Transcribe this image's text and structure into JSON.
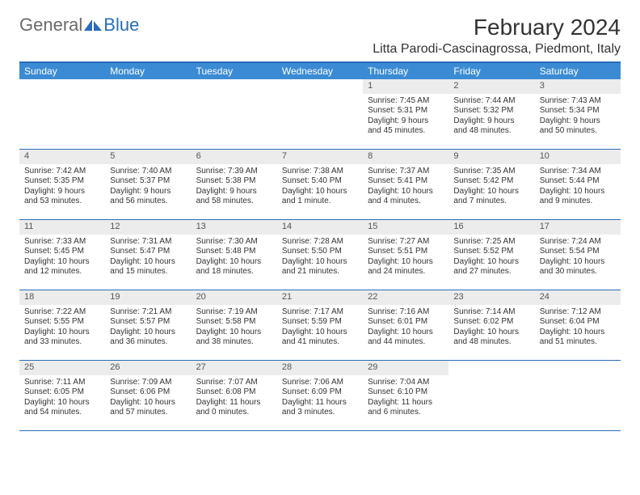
{
  "logo": {
    "text1": "General",
    "text2": "Blue"
  },
  "title": "February 2024",
  "location": "Litta Parodi-Cascinagrossa, Piedmont, Italy",
  "colors": {
    "header_bg": "#3b8bd4",
    "border": "#2a6db8",
    "daynum_bg": "#ececec",
    "logo_gray": "#6a6a6a",
    "logo_blue": "#2a6db8"
  },
  "weekdays": [
    "Sunday",
    "Monday",
    "Tuesday",
    "Wednesday",
    "Thursday",
    "Friday",
    "Saturday"
  ],
  "weeks": [
    [
      {
        "n": "",
        "sr": "",
        "ss": "",
        "dl": ""
      },
      {
        "n": "",
        "sr": "",
        "ss": "",
        "dl": ""
      },
      {
        "n": "",
        "sr": "",
        "ss": "",
        "dl": ""
      },
      {
        "n": "",
        "sr": "",
        "ss": "",
        "dl": ""
      },
      {
        "n": "1",
        "sr": "Sunrise: 7:45 AM",
        "ss": "Sunset: 5:31 PM",
        "dl": "Daylight: 9 hours and 45 minutes."
      },
      {
        "n": "2",
        "sr": "Sunrise: 7:44 AM",
        "ss": "Sunset: 5:32 PM",
        "dl": "Daylight: 9 hours and 48 minutes."
      },
      {
        "n": "3",
        "sr": "Sunrise: 7:43 AM",
        "ss": "Sunset: 5:34 PM",
        "dl": "Daylight: 9 hours and 50 minutes."
      }
    ],
    [
      {
        "n": "4",
        "sr": "Sunrise: 7:42 AM",
        "ss": "Sunset: 5:35 PM",
        "dl": "Daylight: 9 hours and 53 minutes."
      },
      {
        "n": "5",
        "sr": "Sunrise: 7:40 AM",
        "ss": "Sunset: 5:37 PM",
        "dl": "Daylight: 9 hours and 56 minutes."
      },
      {
        "n": "6",
        "sr": "Sunrise: 7:39 AM",
        "ss": "Sunset: 5:38 PM",
        "dl": "Daylight: 9 hours and 58 minutes."
      },
      {
        "n": "7",
        "sr": "Sunrise: 7:38 AM",
        "ss": "Sunset: 5:40 PM",
        "dl": "Daylight: 10 hours and 1 minute."
      },
      {
        "n": "8",
        "sr": "Sunrise: 7:37 AM",
        "ss": "Sunset: 5:41 PM",
        "dl": "Daylight: 10 hours and 4 minutes."
      },
      {
        "n": "9",
        "sr": "Sunrise: 7:35 AM",
        "ss": "Sunset: 5:42 PM",
        "dl": "Daylight: 10 hours and 7 minutes."
      },
      {
        "n": "10",
        "sr": "Sunrise: 7:34 AM",
        "ss": "Sunset: 5:44 PM",
        "dl": "Daylight: 10 hours and 9 minutes."
      }
    ],
    [
      {
        "n": "11",
        "sr": "Sunrise: 7:33 AM",
        "ss": "Sunset: 5:45 PM",
        "dl": "Daylight: 10 hours and 12 minutes."
      },
      {
        "n": "12",
        "sr": "Sunrise: 7:31 AM",
        "ss": "Sunset: 5:47 PM",
        "dl": "Daylight: 10 hours and 15 minutes."
      },
      {
        "n": "13",
        "sr": "Sunrise: 7:30 AM",
        "ss": "Sunset: 5:48 PM",
        "dl": "Daylight: 10 hours and 18 minutes."
      },
      {
        "n": "14",
        "sr": "Sunrise: 7:28 AM",
        "ss": "Sunset: 5:50 PM",
        "dl": "Daylight: 10 hours and 21 minutes."
      },
      {
        "n": "15",
        "sr": "Sunrise: 7:27 AM",
        "ss": "Sunset: 5:51 PM",
        "dl": "Daylight: 10 hours and 24 minutes."
      },
      {
        "n": "16",
        "sr": "Sunrise: 7:25 AM",
        "ss": "Sunset: 5:52 PM",
        "dl": "Daylight: 10 hours and 27 minutes."
      },
      {
        "n": "17",
        "sr": "Sunrise: 7:24 AM",
        "ss": "Sunset: 5:54 PM",
        "dl": "Daylight: 10 hours and 30 minutes."
      }
    ],
    [
      {
        "n": "18",
        "sr": "Sunrise: 7:22 AM",
        "ss": "Sunset: 5:55 PM",
        "dl": "Daylight: 10 hours and 33 minutes."
      },
      {
        "n": "19",
        "sr": "Sunrise: 7:21 AM",
        "ss": "Sunset: 5:57 PM",
        "dl": "Daylight: 10 hours and 36 minutes."
      },
      {
        "n": "20",
        "sr": "Sunrise: 7:19 AM",
        "ss": "Sunset: 5:58 PM",
        "dl": "Daylight: 10 hours and 38 minutes."
      },
      {
        "n": "21",
        "sr": "Sunrise: 7:17 AM",
        "ss": "Sunset: 5:59 PM",
        "dl": "Daylight: 10 hours and 41 minutes."
      },
      {
        "n": "22",
        "sr": "Sunrise: 7:16 AM",
        "ss": "Sunset: 6:01 PM",
        "dl": "Daylight: 10 hours and 44 minutes."
      },
      {
        "n": "23",
        "sr": "Sunrise: 7:14 AM",
        "ss": "Sunset: 6:02 PM",
        "dl": "Daylight: 10 hours and 48 minutes."
      },
      {
        "n": "24",
        "sr": "Sunrise: 7:12 AM",
        "ss": "Sunset: 6:04 PM",
        "dl": "Daylight: 10 hours and 51 minutes."
      }
    ],
    [
      {
        "n": "25",
        "sr": "Sunrise: 7:11 AM",
        "ss": "Sunset: 6:05 PM",
        "dl": "Daylight: 10 hours and 54 minutes."
      },
      {
        "n": "26",
        "sr": "Sunrise: 7:09 AM",
        "ss": "Sunset: 6:06 PM",
        "dl": "Daylight: 10 hours and 57 minutes."
      },
      {
        "n": "27",
        "sr": "Sunrise: 7:07 AM",
        "ss": "Sunset: 6:08 PM",
        "dl": "Daylight: 11 hours and 0 minutes."
      },
      {
        "n": "28",
        "sr": "Sunrise: 7:06 AM",
        "ss": "Sunset: 6:09 PM",
        "dl": "Daylight: 11 hours and 3 minutes."
      },
      {
        "n": "29",
        "sr": "Sunrise: 7:04 AM",
        "ss": "Sunset: 6:10 PM",
        "dl": "Daylight: 11 hours and 6 minutes."
      },
      {
        "n": "",
        "sr": "",
        "ss": "",
        "dl": ""
      },
      {
        "n": "",
        "sr": "",
        "ss": "",
        "dl": ""
      }
    ]
  ]
}
